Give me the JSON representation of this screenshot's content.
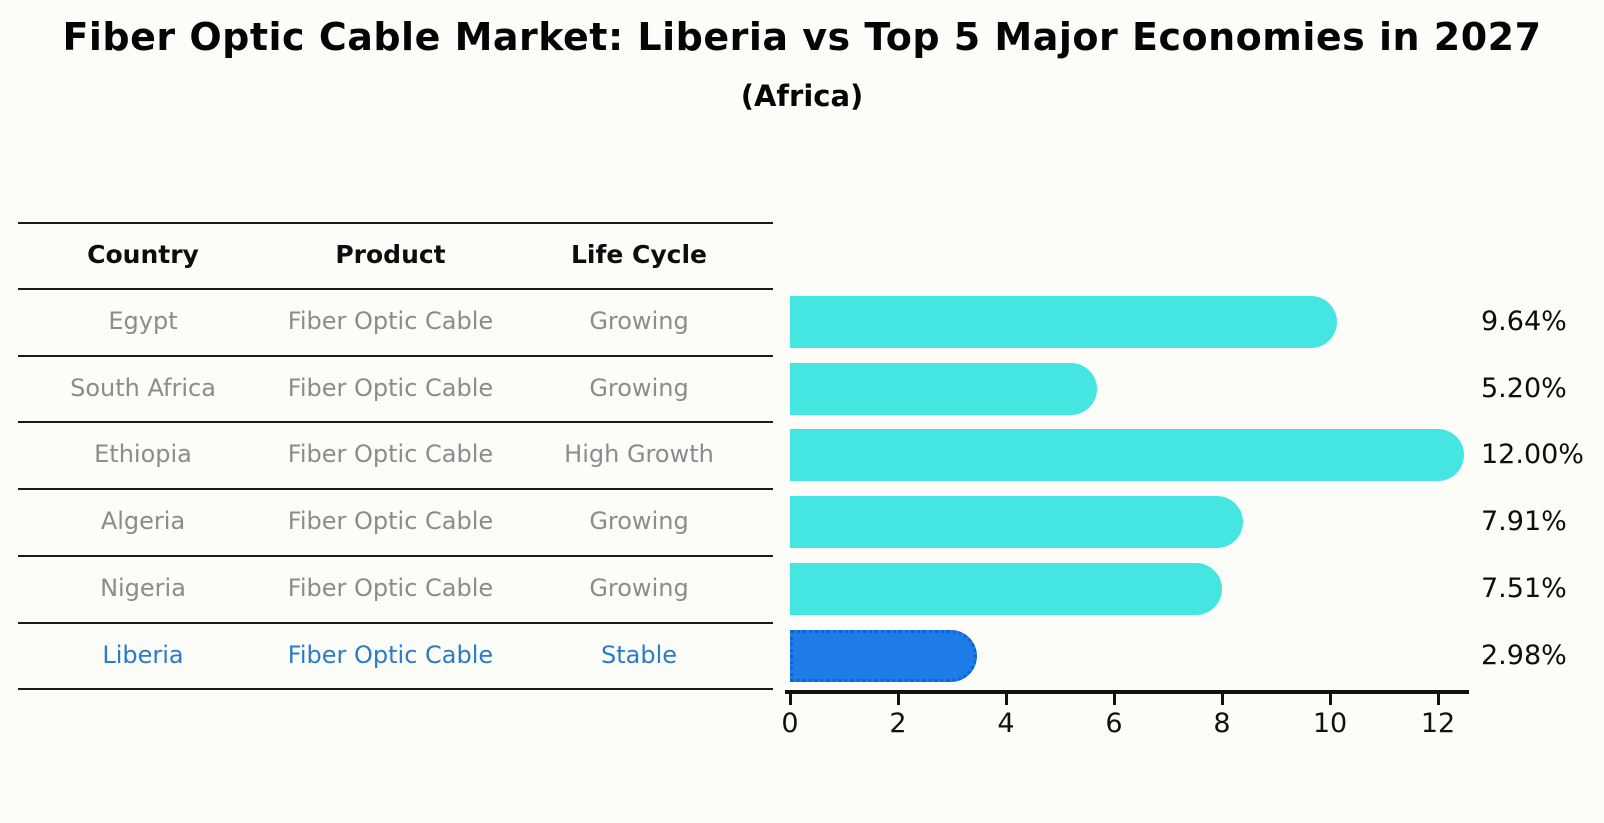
{
  "title": "Fiber Optic Cable Market: Liberia vs Top 5 Major Economies in 2027",
  "subtitle": "(Africa)",
  "table": {
    "headers": {
      "country": "Country",
      "product": "Product",
      "life_cycle": "Life Cycle"
    },
    "rows": [
      {
        "country": "Egypt",
        "product": "Fiber Optic Cable",
        "life_cycle": "Growing",
        "highlight": false
      },
      {
        "country": "South Africa",
        "product": "Fiber Optic Cable",
        "life_cycle": "Growing",
        "highlight": false
      },
      {
        "country": "Ethiopia",
        "product": "Fiber Optic Cable",
        "life_cycle": "High Growth",
        "highlight": false
      },
      {
        "country": "Algeria",
        "product": "Fiber Optic Cable",
        "life_cycle": "Growing",
        "highlight": false
      },
      {
        "country": "Nigeria",
        "product": "Fiber Optic Cable",
        "life_cycle": "Growing",
        "highlight": false
      },
      {
        "country": "Liberia",
        "product": "Fiber Optic Cable",
        "life_cycle": "Stable",
        "highlight": true
      }
    ]
  },
  "chart_data": {
    "type": "bar",
    "orientation": "horizontal",
    "title": "Fiber Optic Cable Market: Liberia vs Top 5 Major Economies in 2027 (Africa)",
    "categories": [
      "Egypt",
      "South Africa",
      "Ethiopia",
      "Algeria",
      "Nigeria",
      "Liberia"
    ],
    "values": [
      9.64,
      5.2,
      12.0,
      7.91,
      7.51,
      2.98
    ],
    "value_labels": [
      "9.64%",
      "5.20%",
      "12.00%",
      "7.91%",
      "7.51%",
      "2.98%"
    ],
    "unit": "%",
    "highlight_index": 5,
    "xlim": [
      0,
      12.6
    ],
    "xticks": [
      0,
      2,
      4,
      6,
      8,
      10,
      12
    ],
    "grid": false,
    "legend": false,
    "bar_color": "#45E6E2",
    "highlight_bar_color": "#1E7CE8",
    "highlight_border_color": "#0F62D6",
    "highlight_text_color": "#2B7BC9",
    "row_text_color": "#8C8C8C"
  }
}
